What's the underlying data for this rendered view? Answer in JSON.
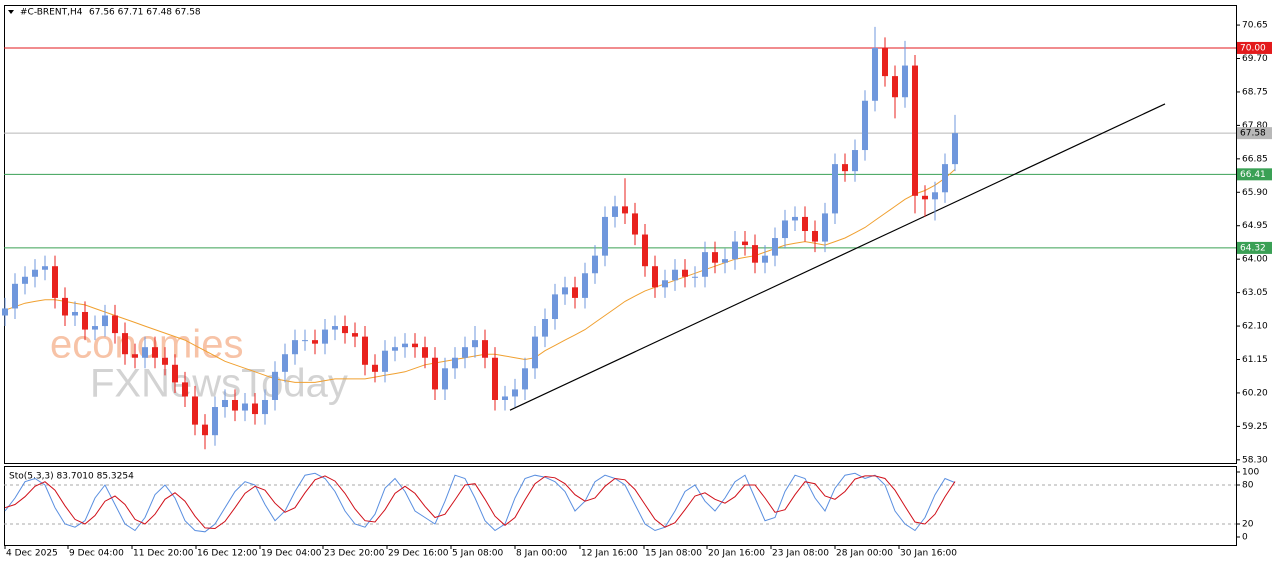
{
  "chart_data": {
    "type": "candlestick",
    "symbol": "#C-BRENT,H4",
    "quote": "67.56 67.71 67.48 67.58",
    "watermark": [
      "economies",
      "FXNewsToday"
    ],
    "up_color": "#6f97dc",
    "down_color": "#e8221e",
    "xlim": [
      -0.1,
      123.1
    ],
    "xticks": [
      {
        "value": 0,
        "label": "4 Dec 2025"
      },
      {
        "value": 6.3,
        "label": "9 Dec 04:00"
      },
      {
        "value": 12.7,
        "label": "11 Dec 20:00"
      },
      {
        "value": 19.1,
        "label": "16 Dec 12:00"
      },
      {
        "value": 25.5,
        "label": "19 Dec 04:00"
      },
      {
        "value": 31.8,
        "label": "23 Dec 20:00"
      },
      {
        "value": 38.2,
        "label": "29 Dec 16:00"
      },
      {
        "value": 44.6,
        "label": "5 Jan 08:00"
      },
      {
        "value": 51.0,
        "label": "8 Jan 00:00"
      },
      {
        "value": 57.5,
        "label": "12 Jan 16:00"
      },
      {
        "value": 63.9,
        "label": "15 Jan 08:00"
      },
      {
        "value": 70.2,
        "label": "20 Jan 16:00"
      },
      {
        "value": 76.6,
        "label": "23 Jan 08:00"
      },
      {
        "value": 83.0,
        "label": "28 Jan 00:00"
      },
      {
        "value": 89.4,
        "label": "30 Jan 16:00"
      }
    ],
    "ylim": [
      58.21,
      71.22
    ],
    "yticks": [
      70.65,
      {
        "value": 69.7,
        "label": "69.70"
      },
      68.75,
      {
        "value": 67.8,
        "label": "67.80"
      },
      66.85,
      {
        "value": 65.9,
        "label": "65.90"
      },
      64.95,
      {
        "value": 64,
        "label": "64.00"
      },
      63.05,
      {
        "value": 62.1,
        "label": "62.10"
      },
      61.15,
      {
        "value": 60.2,
        "label": "60.20"
      },
      59.25,
      {
        "value": 58.3,
        "label": "58.30"
      }
    ],
    "open": [
      62.4,
      62.6,
      63.3,
      63.5,
      63.7,
      63.8,
      62.9,
      62.4,
      62.5,
      62.0,
      62.1,
      62.4,
      61.9,
      61.3,
      61.2,
      61.5,
      61.2,
      61.0,
      60.5,
      60.1,
      59.3,
      59.0,
      59.8,
      60.0,
      59.7,
      59.9,
      59.6,
      60.0,
      60.8,
      61.3,
      61.7,
      61.7,
      61.6,
      62.0,
      62.1,
      61.9,
      61.8,
      61.0,
      60.8,
      61.4,
      61.5,
      61.6,
      61.5,
      61.2,
      60.3,
      60.9,
      61.2,
      61.5,
      61.7,
      61.2,
      60.0,
      60.1,
      60.3,
      60.9,
      61.8,
      62.3,
      63.0,
      63.2,
      62.9,
      63.6,
      64.1,
      65.2,
      65.5,
      65.3,
      64.7,
      63.8,
      63.2,
      63.4,
      63.7,
      63.5,
      63.5,
      64.2,
      63.9,
      64.0,
      64.5,
      64.4,
      63.9,
      64.1,
      64.6,
      65.1,
      65.2,
      64.8,
      64.5,
      65.3,
      66.7,
      66.5,
      67.1,
      68.5,
      70.0,
      69.2,
      68.6,
      69.5,
      65.8,
      65.7,
      65.9,
      66.7
    ],
    "high": [
      62.9,
      63.6,
      63.8,
      64.0,
      64.1,
      64.1,
      63.2,
      62.8,
      62.8,
      62.4,
      62.7,
      62.7,
      62.2,
      61.6,
      61.8,
      61.8,
      61.5,
      61.3,
      60.8,
      60.4,
      59.6,
      60.1,
      60.3,
      60.3,
      60.2,
      60.2,
      60.3,
      61.1,
      61.6,
      62.0,
      62.0,
      62.0,
      62.3,
      62.4,
      62.4,
      62.2,
      62.1,
      61.3,
      61.7,
      61.8,
      61.9,
      61.9,
      61.8,
      61.5,
      61.2,
      61.5,
      61.8,
      62.1,
      62.0,
      61.5,
      60.4,
      60.6,
      61.2,
      62.1,
      62.6,
      63.3,
      63.5,
      63.5,
      63.9,
      64.4,
      65.5,
      65.8,
      66.3,
      65.6,
      65.0,
      64.1,
      63.7,
      64.0,
      64.0,
      63.8,
      64.5,
      64.5,
      64.3,
      64.8,
      64.8,
      64.7,
      64.4,
      64.9,
      65.4,
      65.5,
      65.5,
      65.1,
      65.6,
      67.0,
      67.0,
      67.4,
      68.8,
      70.6,
      70.3,
      69.5,
      70.2,
      69.8,
      66.1,
      66.2,
      67.0,
      68.1
    ],
    "low": [
      62.1,
      62.3,
      63.0,
      63.2,
      63.4,
      62.6,
      62.1,
      62.1,
      61.7,
      61.7,
      61.8,
      61.6,
      61.0,
      60.9,
      60.9,
      60.9,
      60.7,
      60.2,
      59.8,
      59.0,
      58.6,
      58.7,
      59.5,
      59.4,
      59.4,
      59.3,
      59.3,
      59.7,
      60.5,
      61.0,
      61.4,
      61.3,
      61.3,
      61.7,
      61.6,
      61.5,
      60.7,
      60.5,
      60.5,
      61.1,
      61.2,
      61.2,
      60.9,
      60.0,
      60.0,
      60.6,
      60.9,
      61.2,
      60.9,
      59.7,
      59.7,
      59.8,
      60.0,
      60.6,
      61.5,
      62.0,
      62.7,
      62.6,
      62.6,
      63.3,
      63.8,
      64.9,
      65.0,
      64.4,
      63.5,
      62.9,
      62.9,
      63.1,
      63.2,
      63.2,
      63.2,
      63.6,
      63.6,
      63.7,
      64.1,
      63.6,
      63.6,
      63.8,
      64.3,
      64.8,
      64.5,
      64.2,
      64.2,
      65.0,
      66.2,
      66.2,
      66.8,
      68.2,
      68.9,
      68.0,
      68.3,
      65.3,
      65.2,
      65.1,
      65.6,
      66.5
    ],
    "close": [
      62.6,
      63.3,
      63.5,
      63.7,
      63.8,
      62.9,
      62.4,
      62.5,
      62.0,
      62.1,
      62.4,
      61.9,
      61.3,
      61.2,
      61.5,
      61.2,
      61.0,
      60.5,
      60.1,
      59.3,
      59.0,
      59.8,
      60.0,
      59.7,
      59.9,
      59.6,
      60.0,
      60.8,
      61.3,
      61.7,
      61.7,
      61.6,
      62.0,
      62.1,
      61.9,
      61.8,
      61.0,
      60.8,
      61.4,
      61.5,
      61.6,
      61.5,
      61.2,
      60.3,
      60.9,
      61.2,
      61.5,
      61.7,
      61.2,
      60.0,
      60.1,
      60.3,
      60.9,
      61.8,
      62.3,
      63.0,
      63.2,
      62.9,
      63.6,
      64.1,
      65.2,
      65.5,
      65.3,
      64.7,
      63.8,
      63.2,
      63.4,
      63.7,
      63.5,
      63.5,
      64.2,
      63.9,
      64.0,
      64.5,
      64.4,
      63.9,
      64.1,
      64.6,
      65.1,
      65.2,
      64.8,
      64.5,
      65.3,
      66.7,
      66.5,
      67.1,
      68.5,
      70.0,
      69.2,
      68.6,
      69.5,
      65.8,
      65.7,
      65.9,
      66.7,
      67.58
    ],
    "ma": {
      "color": "#f0a030",
      "values": [
        62.55,
        62.65,
        62.75,
        62.8,
        62.85,
        62.85,
        62.8,
        62.75,
        62.7,
        62.6,
        62.5,
        62.4,
        62.3,
        62.2,
        62.1,
        62.0,
        61.9,
        61.8,
        61.7,
        61.55,
        61.4,
        61.25,
        61.1,
        61.0,
        60.9,
        60.8,
        60.7,
        60.6,
        60.55,
        60.5,
        60.5,
        60.5,
        60.55,
        60.6,
        60.6,
        60.6,
        60.6,
        60.65,
        60.7,
        60.75,
        60.8,
        60.9,
        61.0,
        61.05,
        61.1,
        61.15,
        61.2,
        61.25,
        61.3,
        61.3,
        61.25,
        61.2,
        61.15,
        61.2,
        61.4,
        61.55,
        61.7,
        61.85,
        62.0,
        62.2,
        62.4,
        62.6,
        62.8,
        62.95,
        63.1,
        63.2,
        63.3,
        63.4,
        63.5,
        63.6,
        63.7,
        63.8,
        63.9,
        64.0,
        64.05,
        64.1,
        64.2,
        64.3,
        64.4,
        64.45,
        64.5,
        64.45,
        64.4,
        64.5,
        64.6,
        64.75,
        64.9,
        65.1,
        65.3,
        65.5,
        65.7,
        65.85,
        65.95,
        66.1,
        66.3,
        66.55
      ]
    },
    "levels": [
      {
        "value": 70,
        "label": "70.00",
        "color": "#e31a1c"
      },
      {
        "value": 67.58,
        "label": "67.58",
        "color": "#b8b8b8",
        "label_color": "#000000"
      },
      {
        "value": 66.41,
        "label": "66.41",
        "color": "#3aa055"
      },
      {
        "value": 64.32,
        "label": "64.32",
        "color": "#3aa055"
      }
    ],
    "trendline": {
      "x": [
        50.5,
        116
      ],
      "y": [
        59.71,
        68.41
      ],
      "color": "#000000"
    },
    "oscillator": {
      "type": "line",
      "label": "Sto(5,3,3) 83.7010 85.3254",
      "ylim": [
        -12.3,
        109.2
      ],
      "yticks": [
        100,
        80,
        20,
        0
      ],
      "dashed_levels": [
        80,
        20
      ],
      "series": [
        {
          "color": "#5a8fe0",
          "values": [
            40,
            60,
            85,
            90,
            80,
            45,
            20,
            15,
            25,
            60,
            80,
            50,
            20,
            10,
            30,
            65,
            80,
            60,
            25,
            10,
            8,
            20,
            45,
            70,
            85,
            80,
            50,
            25,
            40,
            70,
            95,
            98,
            90,
            70,
            40,
            20,
            15,
            35,
            75,
            90,
            70,
            40,
            30,
            20,
            55,
            95,
            90,
            60,
            25,
            10,
            20,
            60,
            90,
            95,
            92,
            85,
            70,
            40,
            55,
            85,
            95,
            90,
            80,
            50,
            20,
            10,
            15,
            40,
            70,
            80,
            55,
            40,
            60,
            85,
            95,
            60,
            25,
            30,
            70,
            95,
            90,
            60,
            40,
            75,
            95,
            98,
            90,
            95,
            80,
            40,
            20,
            10,
            30,
            65,
            90,
            83.701
          ]
        },
        {
          "color": "#d0101a",
          "values": [
            45,
            50,
            62,
            78,
            85,
            72,
            48,
            27,
            20,
            33,
            55,
            63,
            50,
            27,
            20,
            35,
            58,
            68,
            55,
            32,
            14,
            13,
            24,
            45,
            67,
            78,
            72,
            52,
            38,
            45,
            68,
            88,
            94,
            86,
            67,
            43,
            25,
            23,
            42,
            67,
            78,
            67,
            47,
            30,
            35,
            57,
            80,
            82,
            58,
            32,
            18,
            30,
            57,
            82,
            93,
            91,
            82,
            65,
            55,
            60,
            78,
            90,
            88,
            73,
            50,
            27,
            15,
            22,
            42,
            63,
            68,
            58,
            52,
            62,
            80,
            80,
            60,
            38,
            42,
            65,
            85,
            82,
            63,
            58,
            70,
            89,
            94,
            94,
            90,
            72,
            47,
            23,
            20,
            35,
            62,
            85.3254
          ]
        }
      ]
    }
  }
}
